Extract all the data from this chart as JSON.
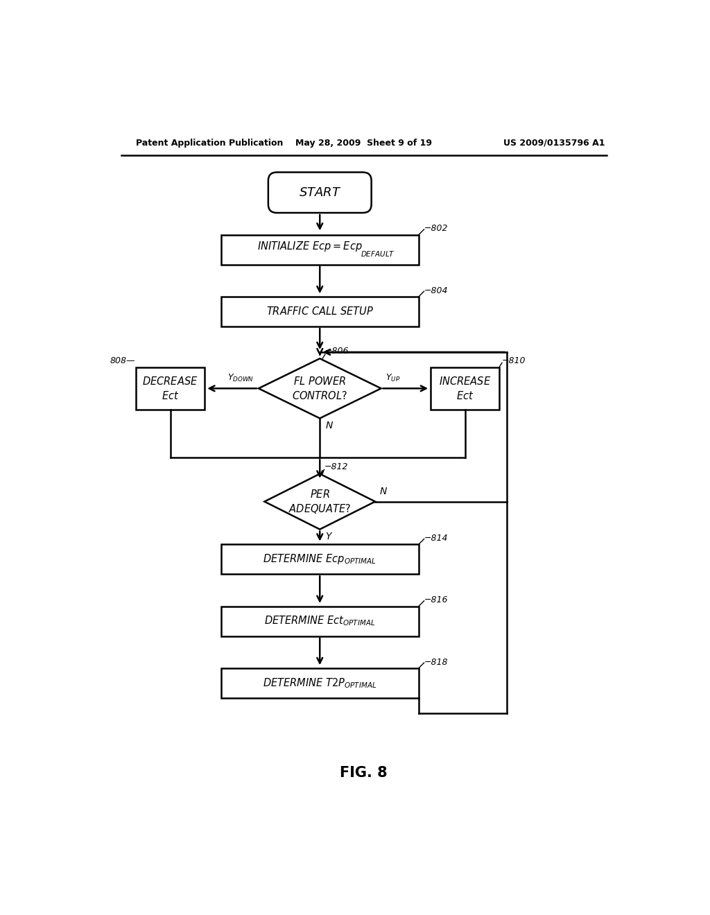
{
  "header_left": "Patent Application Publication",
  "header_mid": "May 28, 2009  Sheet 9 of 19",
  "header_right": "US 2009/0135796 A1",
  "fig_label": "FIG. 8",
  "background": "#ffffff",
  "lw": 1.8,
  "arrow_lw": 1.8,
  "fs_main": 10.5,
  "fs_tag": 9,
  "fs_header": 9,
  "fs_fig": 15
}
